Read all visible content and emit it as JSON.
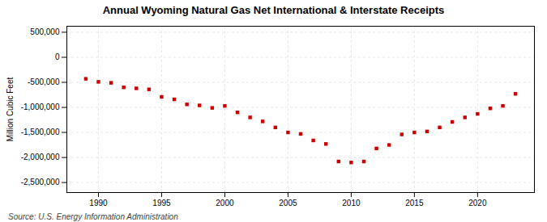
{
  "chart_data": {
    "type": "scatter",
    "title": "Annual Wyoming Natural Gas Net International & Interstate Receipts",
    "ylabel": "Million Cubic Feet",
    "source": "Source: U.S. Energy Information Administration",
    "color": "#cc0000",
    "marker": "square",
    "grid": true,
    "xlim": [
      1987.5,
      2024.5
    ],
    "ylim": [
      -2700000,
      620000
    ],
    "xticks": [
      1990,
      1995,
      2000,
      2005,
      2010,
      2015,
      2020
    ],
    "yticks": [
      {
        "value": 500000,
        "label": "500,000"
      },
      0,
      {
        "value": -500000,
        "label": "-500,000"
      },
      {
        "value": -1000000,
        "label": "-1,000,000"
      },
      {
        "value": -1500000,
        "label": "-1,500,000"
      },
      {
        "value": -2000000,
        "label": "-2,000,000"
      },
      {
        "value": -2500000,
        "label": "-2,500,000"
      }
    ],
    "x": [
      1989,
      1990,
      1991,
      1992,
      1993,
      1994,
      1995,
      1996,
      1997,
      1998,
      1999,
      2000,
      2001,
      2002,
      2003,
      2004,
      2005,
      2006,
      2007,
      2008,
      2009,
      2010,
      2011,
      2012,
      2013,
      2014,
      2015,
      2016,
      2017,
      2018,
      2019,
      2020,
      2021,
      2022,
      2023
    ],
    "values": [
      -430000,
      -490000,
      -510000,
      -600000,
      -620000,
      -640000,
      -790000,
      -840000,
      -940000,
      -960000,
      -1010000,
      -970000,
      -1100000,
      -1200000,
      -1280000,
      -1400000,
      -1500000,
      -1530000,
      -1660000,
      -1730000,
      -2080000,
      -2100000,
      -2080000,
      -1820000,
      -1750000,
      -1540000,
      -1500000,
      -1480000,
      -1400000,
      -1290000,
      -1200000,
      -1130000,
      -1020000,
      -970000,
      -730000
    ]
  }
}
